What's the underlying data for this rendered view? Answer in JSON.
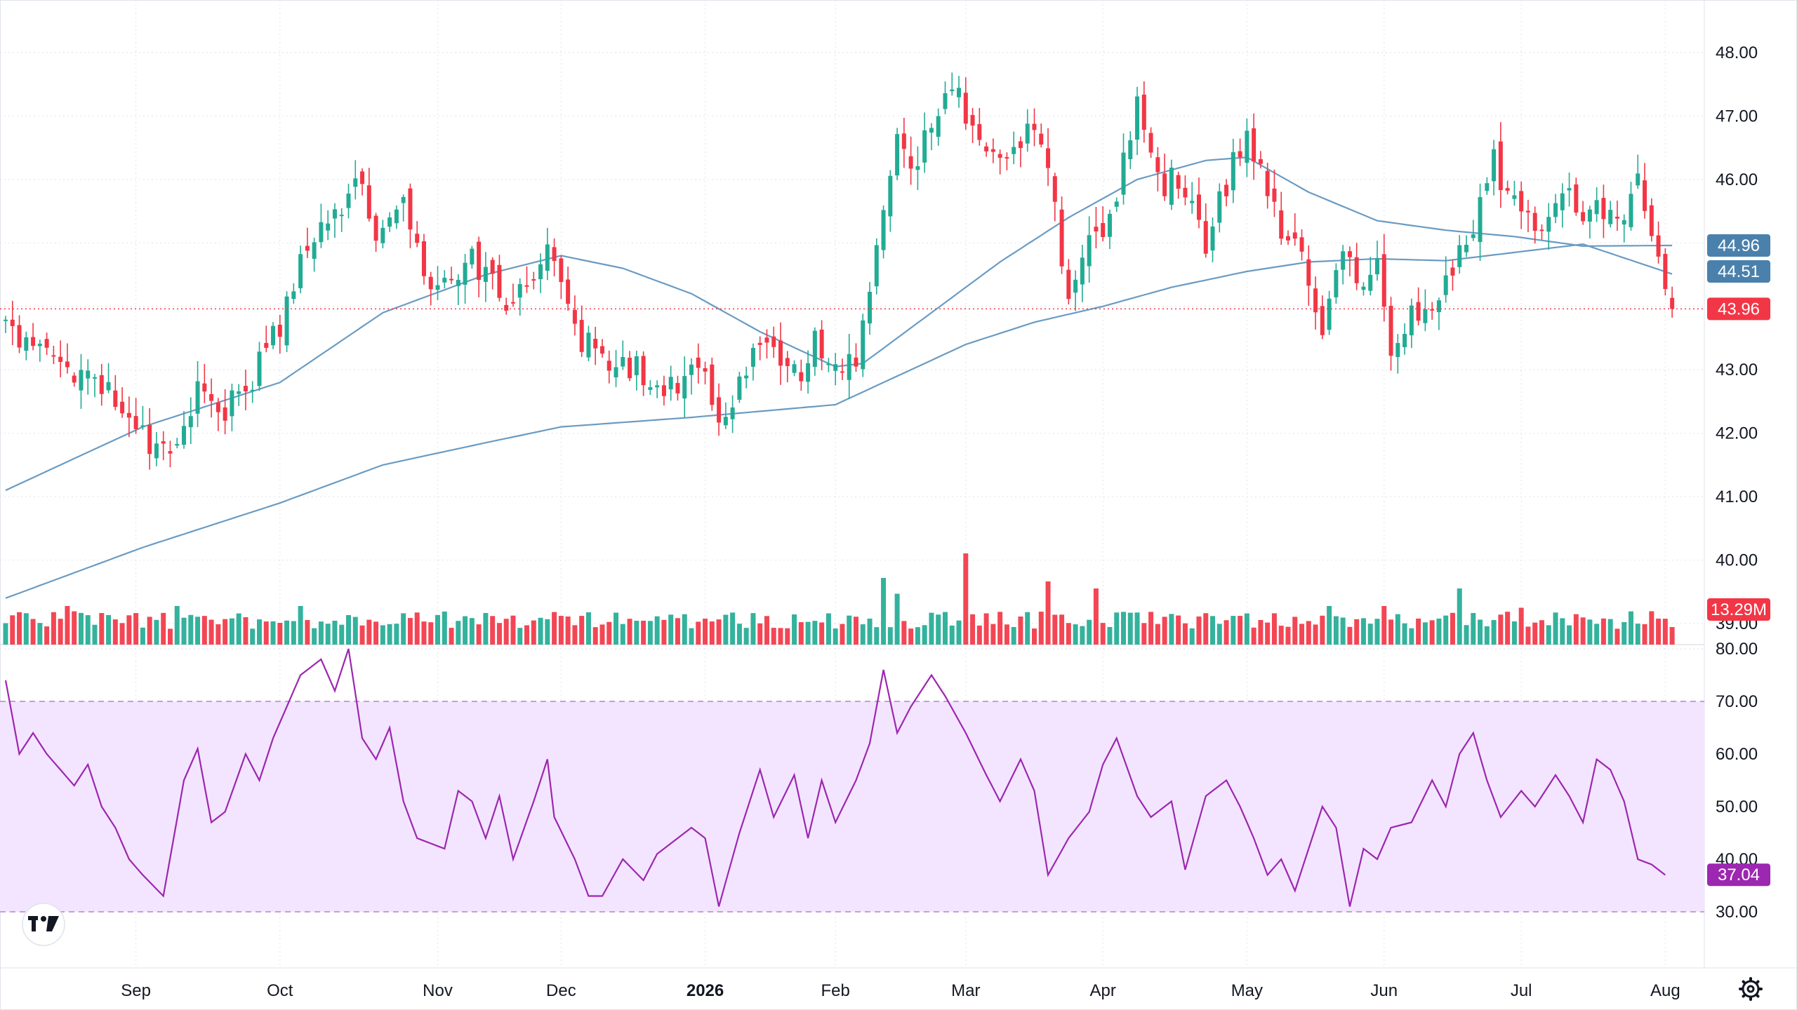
{
  "chart_data": [
    {
      "type": "candlestick",
      "panel": "price",
      "y_ticks": [
        "48.00",
        "47.00",
        "46.00",
        "45.00",
        "44.00",
        "43.00",
        "42.00",
        "41.00",
        "40.00",
        "39.00"
      ],
      "y_range": [
        38.85,
        48.35
      ],
      "x_tick_labels": [
        {
          "label": "Sep",
          "bar": 19,
          "bold": false
        },
        {
          "label": "Oct",
          "bar": 40,
          "bold": false
        },
        {
          "label": "Nov",
          "bar": 63,
          "bold": false
        },
        {
          "label": "Dec",
          "bar": 81,
          "bold": false
        },
        {
          "label": "2026",
          "bar": 102,
          "bold": true
        },
        {
          "label": "Feb",
          "bar": 121,
          "bold": false
        },
        {
          "label": "Mar",
          "bar": 140,
          "bold": false
        },
        {
          "label": "Apr",
          "bar": 160,
          "bold": false
        },
        {
          "label": "May",
          "bar": 181,
          "bold": false
        },
        {
          "label": "Jun",
          "bar": 201,
          "bold": false
        },
        {
          "label": "Jul",
          "bar": 221,
          "bold": false
        },
        {
          "label": "Aug",
          "bar": 242,
          "bold": false
        }
      ],
      "close_anchors": [
        [
          0,
          43.6
        ],
        [
          5,
          43.2
        ],
        [
          10,
          43.0
        ],
        [
          15,
          42.7
        ],
        [
          19,
          42.1
        ],
        [
          24,
          41.5
        ],
        [
          28,
          42.6
        ],
        [
          32,
          42.4
        ],
        [
          36,
          42.9
        ],
        [
          40,
          43.7
        ],
        [
          44,
          45.1
        ],
        [
          48,
          45.4
        ],
        [
          51,
          46.2
        ],
        [
          54,
          45.2
        ],
        [
          58,
          45.5
        ],
        [
          61,
          44.5
        ],
        [
          64,
          44.3
        ],
        [
          67,
          44.8
        ],
        [
          70,
          44.5
        ],
        [
          73,
          44.1
        ],
        [
          77,
          44.4
        ],
        [
          79,
          44.9
        ],
        [
          81,
          44.4
        ],
        [
          84,
          43.5
        ],
        [
          88,
          43.0
        ],
        [
          92,
          43.1
        ],
        [
          95,
          42.6
        ],
        [
          99,
          42.9
        ],
        [
          102,
          42.8
        ],
        [
          104,
          42.0
        ],
        [
          107,
          42.8
        ],
        [
          110,
          43.6
        ],
        [
          113,
          43.2
        ],
        [
          116,
          42.9
        ],
        [
          118,
          43.6
        ],
        [
          121,
          43.0
        ],
        [
          124,
          43.2
        ],
        [
          126,
          44.2
        ],
        [
          128,
          45.3
        ],
        [
          130,
          46.6
        ],
        [
          132,
          46.0
        ],
        [
          135,
          47.0
        ],
        [
          138,
          47.5
        ],
        [
          141,
          46.7
        ],
        [
          144,
          46.3
        ],
        [
          147,
          46.4
        ],
        [
          149,
          47.0
        ],
        [
          151,
          46.6
        ],
        [
          153,
          45.6
        ],
        [
          155,
          44.0
        ],
        [
          158,
          45.0
        ],
        [
          161,
          45.4
        ],
        [
          163,
          46.3
        ],
        [
          165,
          47.1
        ],
        [
          168,
          45.9
        ],
        [
          171,
          46.0
        ],
        [
          173,
          45.8
        ],
        [
          175,
          45.0
        ],
        [
          177,
          45.6
        ],
        [
          179,
          46.3
        ],
        [
          181,
          46.7
        ],
        [
          183,
          46.1
        ],
        [
          186,
          45.2
        ],
        [
          189,
          44.7
        ],
        [
          192,
          43.5
        ],
        [
          195,
          44.8
        ],
        [
          198,
          44.3
        ],
        [
          200,
          44.9
        ],
        [
          202,
          43.4
        ],
        [
          204,
          43.7
        ],
        [
          207,
          44.0
        ],
        [
          210,
          44.4
        ],
        [
          212,
          45.0
        ],
        [
          215,
          45.5
        ],
        [
          217,
          46.3
        ],
        [
          219,
          45.6
        ],
        [
          221,
          45.7
        ],
        [
          224,
          45.2
        ],
        [
          227,
          45.9
        ],
        [
          230,
          45.4
        ],
        [
          233,
          45.6
        ],
        [
          235,
          45.3
        ],
        [
          238,
          45.9
        ],
        [
          240,
          45.2
        ],
        [
          242,
          44.2
        ],
        [
          243,
          43.96
        ]
      ],
      "last_close": 43.96,
      "num_bars": 244,
      "series": [
        {
          "name": "",
          "kind": "moving-average",
          "value_label": "44.96",
          "color": "#6a9bc3",
          "anchors": [
            [
              0,
              41.1
            ],
            [
              20,
              42.1
            ],
            [
              40,
              42.8
            ],
            [
              55,
              43.9
            ],
            [
              70,
              44.5
            ],
            [
              81,
              44.8
            ],
            [
              90,
              44.6
            ],
            [
              100,
              44.2
            ],
            [
              110,
              43.6
            ],
            [
              121,
              43.05
            ],
            [
              125,
              43.1
            ],
            [
              135,
              43.9
            ],
            [
              145,
              44.7
            ],
            [
              155,
              45.4
            ],
            [
              165,
              46.0
            ],
            [
              175,
              46.3
            ],
            [
              181,
              46.35
            ],
            [
              190,
              45.8
            ],
            [
              200,
              45.35
            ],
            [
              210,
              45.2
            ],
            [
              220,
              45.1
            ],
            [
              230,
              44.95
            ],
            [
              243,
              44.96
            ]
          ]
        },
        {
          "name": "",
          "kind": "moving-average",
          "value_label": "44.51",
          "color": "#6a9bc3",
          "anchors": [
            [
              0,
              39.4
            ],
            [
              20,
              40.2
            ],
            [
              40,
              40.9
            ],
            [
              55,
              41.5
            ],
            [
              70,
              41.85
            ],
            [
              81,
              42.1
            ],
            [
              100,
              42.25
            ],
            [
              121,
              42.45
            ],
            [
              130,
              42.9
            ],
            [
              140,
              43.4
            ],
            [
              150,
              43.75
            ],
            [
              160,
              44.0
            ],
            [
              170,
              44.3
            ],
            [
              181,
              44.55
            ],
            [
              190,
              44.7
            ],
            [
              200,
              44.75
            ],
            [
              210,
              44.72
            ],
            [
              220,
              44.85
            ],
            [
              230,
              44.98
            ],
            [
              243,
              44.51
            ]
          ]
        }
      ],
      "last_price_label": "43.96",
      "colors": {
        "up": "#22ab94",
        "down": "#f23645",
        "ma": "#6a9bc3",
        "last_price": "#f23645"
      }
    },
    {
      "type": "bar",
      "panel": "volume",
      "last_value_label": "13.29M",
      "spikes": [
        {
          "bar": 140,
          "height": 2.6
        },
        {
          "bar": 128,
          "height": 1.9
        },
        {
          "bar": 152,
          "height": 1.8
        },
        {
          "bar": 159,
          "height": 1.6
        },
        {
          "bar": 212,
          "height": 1.6
        },
        {
          "bar": 130,
          "height": 1.45
        },
        {
          "bar": 9,
          "height": 1.1
        },
        {
          "bar": 25,
          "height": 1.1
        },
        {
          "bar": 43,
          "height": 1.1
        },
        {
          "bar": 201,
          "height": 1.1
        },
        {
          "bar": 193,
          "height": 1.1
        },
        {
          "bar": 221,
          "height": 1.05
        },
        {
          "bar": 240,
          "height": 0.95
        },
        {
          "bar": 243,
          "height": 0.5
        }
      ],
      "colors": {
        "up": "#22ab94",
        "down": "#f23645"
      }
    },
    {
      "type": "line",
      "panel": "rsi",
      "y_ticks": [
        "80.00",
        "70.00",
        "60.00",
        "50.00",
        "40.00",
        "30.00"
      ],
      "y_range": [
        28,
        82
      ],
      "band": [
        30,
        70
      ],
      "anchors": [
        [
          0,
          74
        ],
        [
          2,
          60
        ],
        [
          4,
          64
        ],
        [
          6,
          60
        ],
        [
          10,
          54
        ],
        [
          12,
          58
        ],
        [
          14,
          50
        ],
        [
          16,
          46
        ],
        [
          18,
          40
        ],
        [
          20,
          37
        ],
        [
          23,
          33
        ],
        [
          26,
          55
        ],
        [
          28,
          61
        ],
        [
          30,
          47
        ],
        [
          32,
          49
        ],
        [
          35,
          60
        ],
        [
          37,
          55
        ],
        [
          39,
          63
        ],
        [
          41,
          69
        ],
        [
          43,
          75
        ],
        [
          46,
          78
        ],
        [
          48,
          72
        ],
        [
          50,
          80
        ],
        [
          52,
          63
        ],
        [
          54,
          59
        ],
        [
          56,
          65
        ],
        [
          58,
          51
        ],
        [
          60,
          44
        ],
        [
          64,
          42
        ],
        [
          66,
          53
        ],
        [
          68,
          51
        ],
        [
          70,
          44
        ],
        [
          72,
          52
        ],
        [
          74,
          40
        ],
        [
          77,
          51
        ],
        [
          79,
          59
        ],
        [
          80,
          48
        ],
        [
          83,
          40
        ],
        [
          85,
          33
        ],
        [
          87,
          33
        ],
        [
          90,
          40
        ],
        [
          93,
          36
        ],
        [
          95,
          41
        ],
        [
          98,
          44
        ],
        [
          100,
          46
        ],
        [
          102,
          44
        ],
        [
          104,
          31
        ],
        [
          107,
          45
        ],
        [
          110,
          57
        ],
        [
          112,
          48
        ],
        [
          115,
          56
        ],
        [
          117,
          44
        ],
        [
          119,
          55
        ],
        [
          121,
          47
        ],
        [
          124,
          55
        ],
        [
          126,
          62
        ],
        [
          128,
          76
        ],
        [
          130,
          64
        ],
        [
          132,
          69
        ],
        [
          135,
          75
        ],
        [
          137,
          71
        ],
        [
          140,
          64
        ],
        [
          143,
          56
        ],
        [
          145,
          51
        ],
        [
          148,
          59
        ],
        [
          150,
          53
        ],
        [
          152,
          37
        ],
        [
          155,
          44
        ],
        [
          158,
          49
        ],
        [
          160,
          58
        ],
        [
          162,
          63
        ],
        [
          165,
          52
        ],
        [
          167,
          48
        ],
        [
          170,
          51
        ],
        [
          172,
          38
        ],
        [
          175,
          52
        ],
        [
          178,
          55
        ],
        [
          180,
          50
        ],
        [
          182,
          44
        ],
        [
          184,
          37
        ],
        [
          186,
          40
        ],
        [
          188,
          34
        ],
        [
          190,
          42
        ],
        [
          192,
          50
        ],
        [
          194,
          46
        ],
        [
          196,
          31
        ],
        [
          198,
          42
        ],
        [
          200,
          40
        ],
        [
          202,
          46
        ],
        [
          205,
          47
        ],
        [
          208,
          55
        ],
        [
          210,
          50
        ],
        [
          212,
          60
        ],
        [
          214,
          64
        ],
        [
          216,
          55
        ],
        [
          218,
          48
        ],
        [
          221,
          53
        ],
        [
          223,
          50
        ],
        [
          226,
          56
        ],
        [
          228,
          52
        ],
        [
          230,
          47
        ],
        [
          232,
          59
        ],
        [
          234,
          57
        ],
        [
          236,
          51
        ],
        [
          238,
          40
        ],
        [
          240,
          39
        ],
        [
          242,
          37
        ]
      ],
      "last_value_label": "37.04",
      "colors": {
        "line": "#9c27b0",
        "band": "#f3e5ff",
        "label": "#9c27b0"
      }
    }
  ],
  "icons": [
    "tradingview-logo-icon",
    "settings-gear-icon"
  ]
}
